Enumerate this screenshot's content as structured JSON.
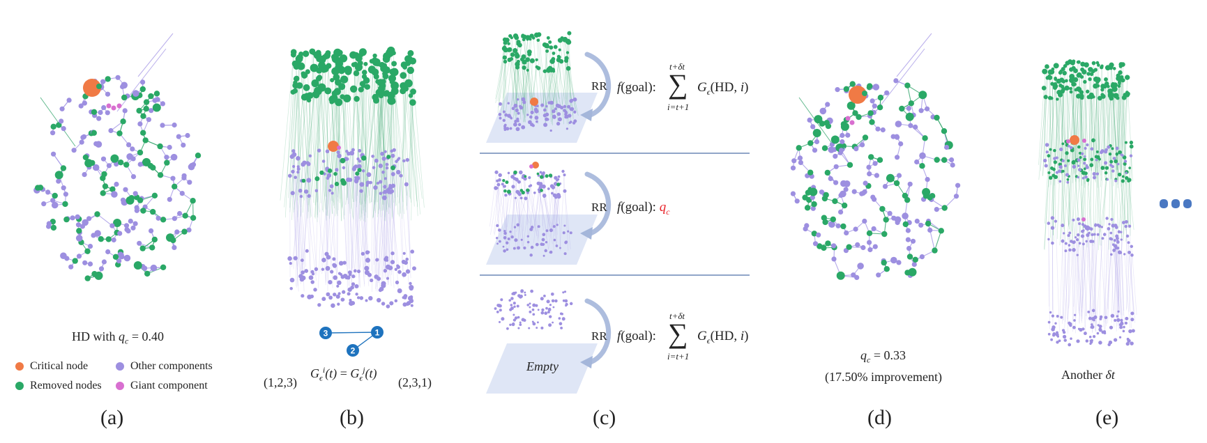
{
  "colors": {
    "critical": "#f07a45",
    "removed": "#2aa866",
    "other": "#9d8fe0",
    "giant": "#d86fd0",
    "edge_green": "#3aa871",
    "edge_purple": "#a79ae6",
    "plane": "#dfe6f6",
    "arrow": "#a4b6da",
    "divider": "#4d6fa8",
    "badge": "#1e73be"
  },
  "panel_a": {
    "caption": "HD with q_c = 0.40",
    "legend": {
      "critical": "Critical node",
      "removed": "Removed nodes",
      "other": "Other components",
      "giant": "Giant component"
    },
    "label": "(a)"
  },
  "panel_b": {
    "badges": [
      "1",
      "2",
      "3"
    ],
    "left_perm": "(1,2,3)",
    "right_perm": "(2,3,1)",
    "equation": "G_ϵ^i(t) = G_ϵ^j(t)",
    "label": "(b)"
  },
  "panel_c": {
    "rows": [
      {
        "rr": "RR",
        "f": "f(goal):",
        "sum_upper": "t+δt",
        "sum_lower": "i=t+1",
        "term": "G_ϵ(HD, i)"
      },
      {
        "rr": "RR",
        "f": "f(goal):",
        "target": "q_c"
      },
      {
        "rr": "RR",
        "f": "f(goal):",
        "sum_upper": "t+δt",
        "sum_lower": "i=t+1",
        "term": "G_ϵ(HD, i)"
      }
    ],
    "empty_label": "Empty",
    "label": "(c)"
  },
  "panel_d": {
    "caption": "q_c = 0.33",
    "subcaption": "(17.50% improvement)",
    "label": "(d)"
  },
  "panel_e": {
    "caption": "Another δt",
    "label": "(e)"
  }
}
